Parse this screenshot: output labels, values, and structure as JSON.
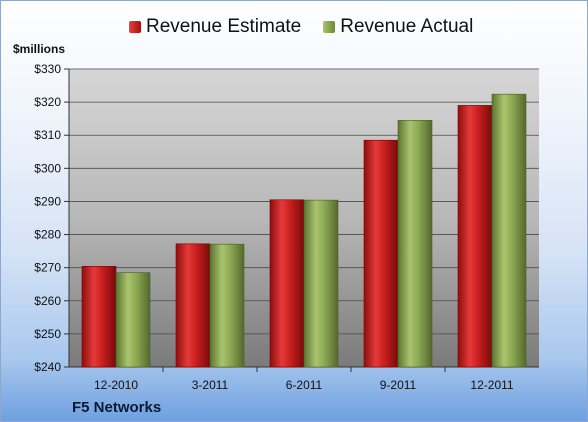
{
  "chart_data": {
    "type": "bar",
    "ylabel": "$millions",
    "ylim": [
      240,
      330
    ],
    "yticks": [
      "$240",
      "$250",
      "$260",
      "$270",
      "$280",
      "$290",
      "$300",
      "$310",
      "$320",
      "$330"
    ],
    "categories": [
      "12-2010",
      "3-2011",
      "6-2011",
      "9-2011",
      "12-2011"
    ],
    "series": [
      {
        "name": "Revenue Estimate",
        "color": "#cc1f1f",
        "values": [
          270.4,
          277.2,
          290.5,
          308.5,
          319.0
        ]
      },
      {
        "name": "Revenue Actual",
        "color": "#8aa650",
        "values": [
          268.5,
          277.1,
          290.4,
          314.5,
          322.4
        ]
      }
    ],
    "legend_position": "top",
    "grid": true
  },
  "footer": {
    "company": "F5 Networks"
  }
}
